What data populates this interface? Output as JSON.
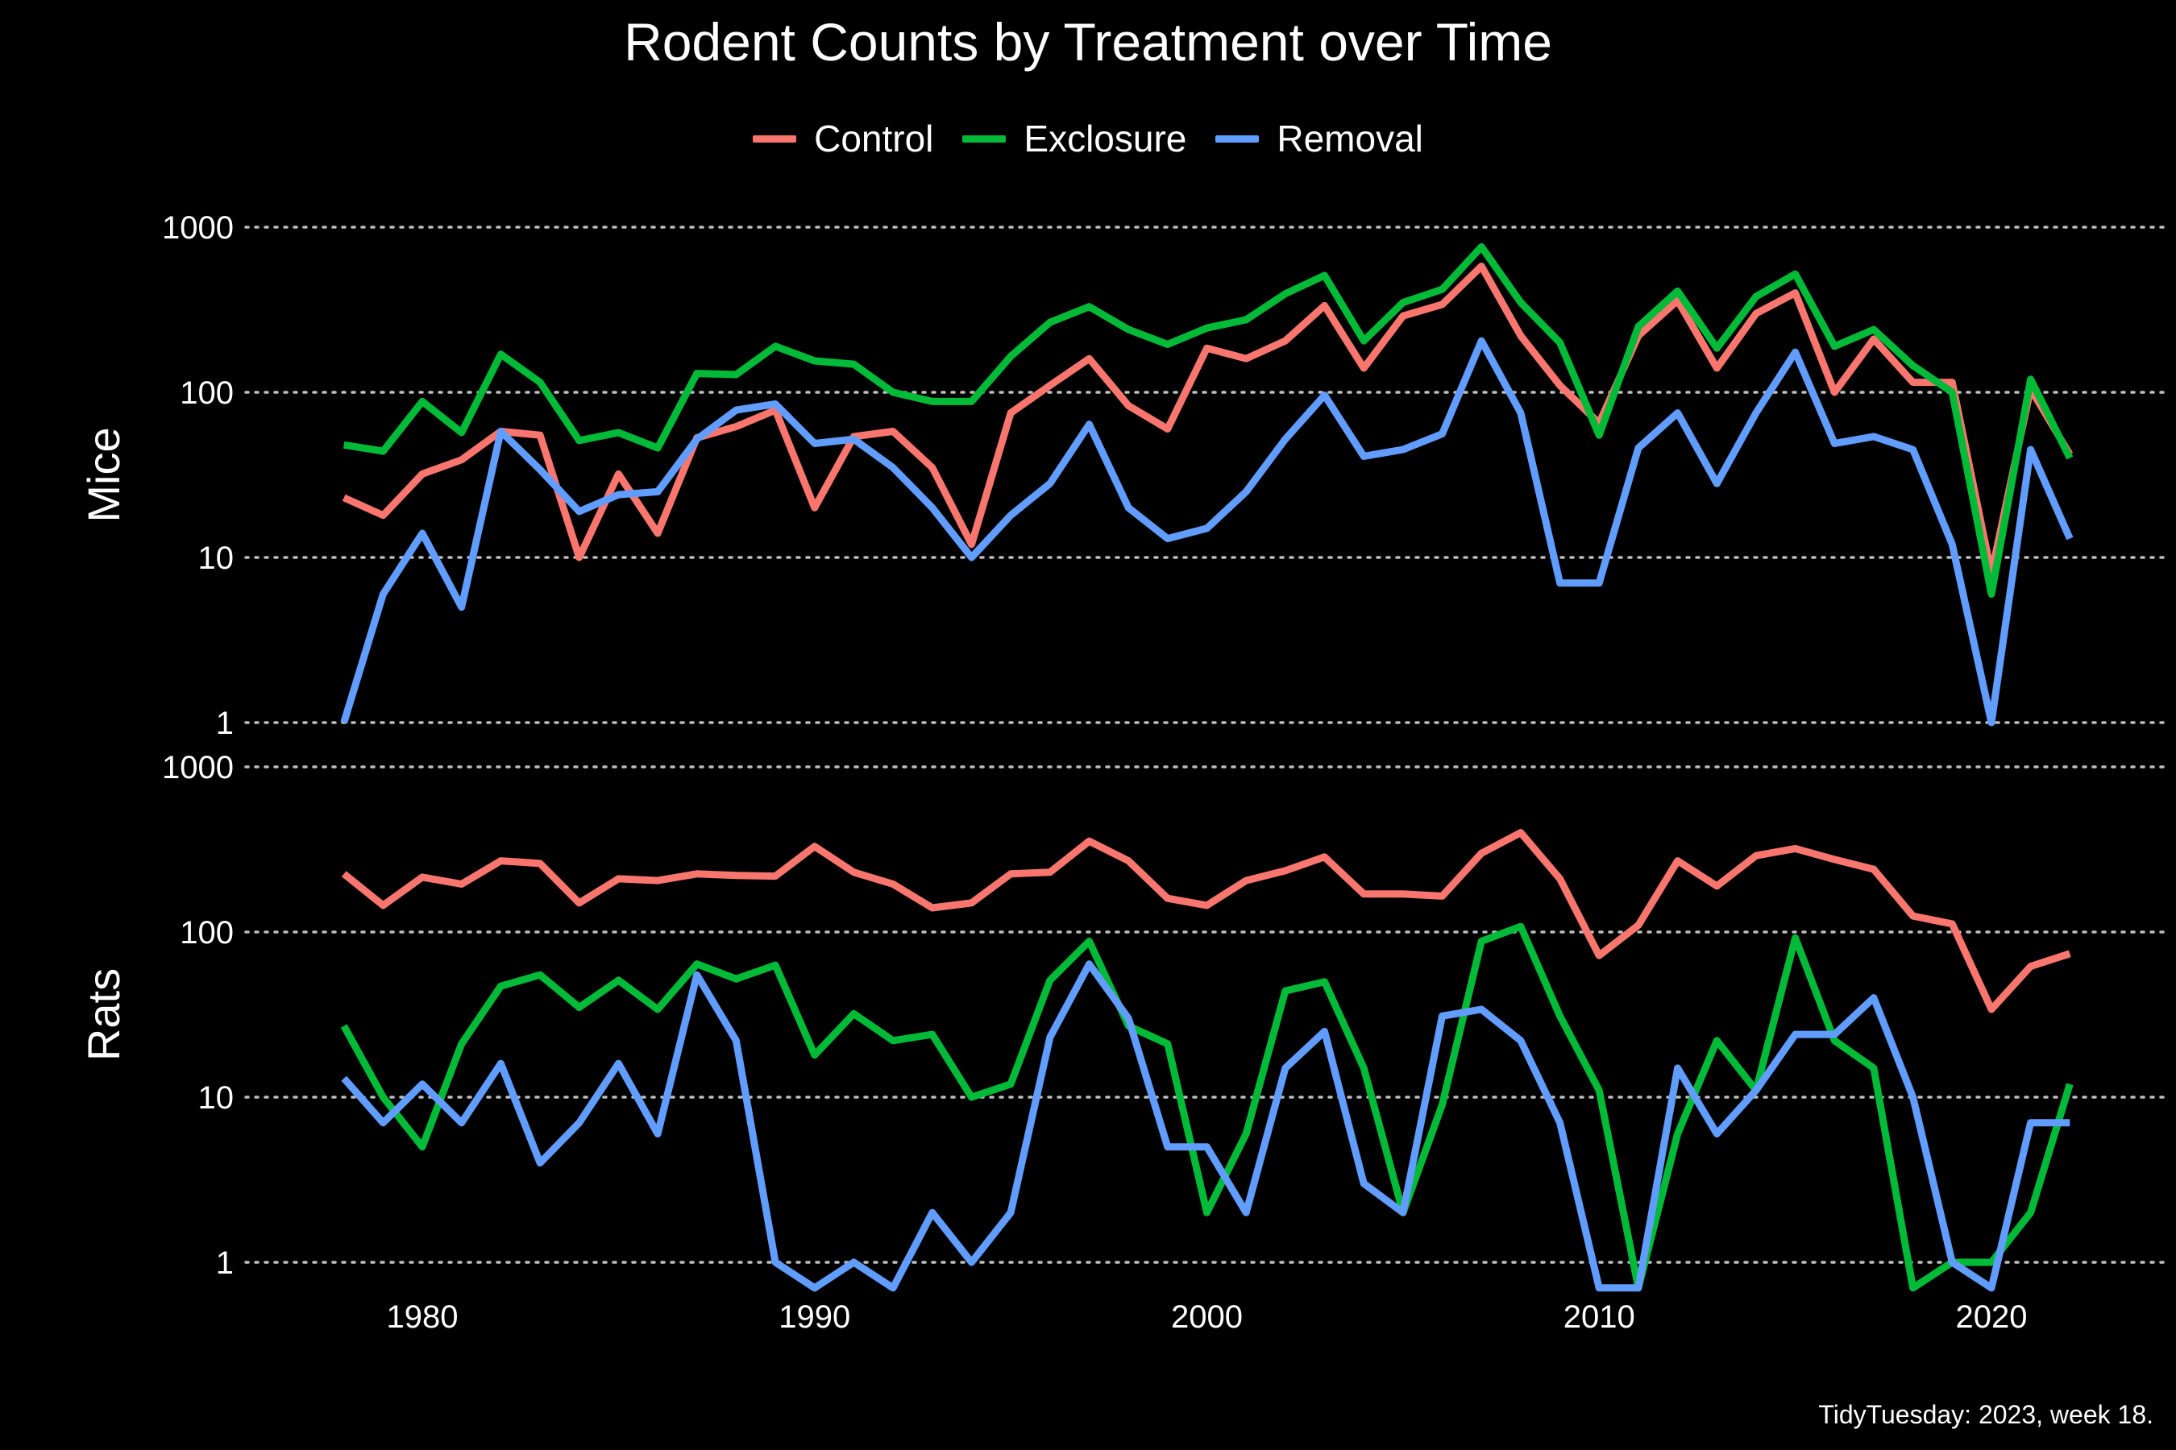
{
  "chart_data": {
    "type": "line",
    "title": "Rodent Counts by Treatment over Time",
    "caption": "TidyTuesday: 2023, week 18.",
    "xlabel": "",
    "ylabel": "",
    "y_scale": "log10",
    "grid": "horizontal dotted",
    "legend_position": "top",
    "x_ticks": [
      1980,
      1990,
      2000,
      2010,
      2020
    ],
    "x_range": [
      1975.5,
      2024.5
    ],
    "y_ticks": [
      1,
      10,
      100,
      1000
    ],
    "y_tick_labels": [
      "1",
      "10",
      "100",
      "1000"
    ],
    "legend": [
      {
        "name": "Control",
        "color": "#F8766D"
      },
      {
        "name": "Exclosure",
        "color": "#00BA38"
      },
      {
        "name": "Removal",
        "color": "#619CFF"
      }
    ],
    "x": [
      1978,
      1979,
      1980,
      1981,
      1982,
      1983,
      1984,
      1985,
      1986,
      1987,
      1988,
      1989,
      1990,
      1991,
      1992,
      1993,
      1994,
      1995,
      1996,
      1997,
      1998,
      1999,
      2000,
      2001,
      2002,
      2003,
      2004,
      2005,
      2006,
      2007,
      2008,
      2009,
      2010,
      2011,
      2012,
      2013,
      2014,
      2015,
      2016,
      2017,
      2018,
      2019,
      2020,
      2021,
      2022
    ],
    "panels": [
      {
        "label": "Mice",
        "ylim": [
          1,
          1000
        ],
        "series": [
          {
            "name": "Control",
            "values": [
              23,
              18,
              32,
              39,
              58,
              55,
              10,
              32,
              14,
              53,
              62,
              78,
              20,
              54,
              58,
              35,
              12,
              75,
              110,
              160,
              83,
              60,
              185,
              160,
              205,
              335,
              140,
              290,
              340,
              580,
              220,
              110,
              65,
              220,
              360,
              140,
              300,
              400,
              100,
              210,
              115,
              115,
              8,
              105,
              42
            ]
          },
          {
            "name": "Exclosure",
            "values": [
              48,
              44,
              88,
              57,
              170,
              115,
              51,
              57,
              46,
              130,
              128,
              190,
              155,
              148,
              100,
              88,
              88,
              165,
              265,
              330,
              240,
              195,
              245,
              275,
              395,
              510,
              205,
              350,
              420,
              760,
              350,
              200,
              55,
              250,
              410,
              185,
              380,
              520,
              190,
              240,
              145,
              100,
              6,
              120,
              40
            ]
          },
          {
            "name": "Removal",
            "values": [
              1,
              6,
              14,
              5,
              58,
              34,
              19,
              24,
              25,
              52,
              78,
              85,
              49,
              52,
              35,
              20,
              10,
              18,
              28,
              64,
              20,
              13,
              15,
              25,
              52,
              96,
              41,
              45,
              56,
              205,
              75,
              7,
              7,
              46,
              75,
              28,
              75,
              175,
              49,
              54,
              45,
              12,
              1,
              45,
              13
            ]
          }
        ]
      },
      {
        "label": "Rats",
        "ylim": [
          0.75,
          1000
        ],
        "series": [
          {
            "name": "Control",
            "values": [
              225,
              145,
              215,
              195,
              270,
              260,
              150,
              210,
              205,
              225,
              220,
              218,
              330,
              230,
              195,
              140,
              150,
              225,
              230,
              355,
              270,
              160,
              145,
              205,
              235,
              285,
              170,
              170,
              165,
              300,
              400,
              210,
              72,
              110,
              270,
              190,
              290,
              320,
              275,
              240,
              125,
              112,
              34,
              62,
              74
            ]
          },
          {
            "name": "Exclosure",
            "values": [
              27,
              10,
              5,
              21,
              47,
              55,
              35,
              51,
              34,
              64,
              52,
              63,
              18,
              32,
              22,
              24,
              10,
              12,
              51,
              88,
              27,
              21,
              2,
              6,
              44,
              50,
              15,
              2,
              9,
              88,
              108,
              31,
              11,
              0.7,
              6,
              22,
              11,
              92,
              22,
              15,
              0.7,
              1,
              1,
              2,
              12
            ]
          },
          {
            "name": "Removal",
            "values": [
              13,
              7,
              12,
              7,
              16,
              4,
              7,
              16,
              6,
              55,
              22,
              1,
              0.7,
              1,
              0.7,
              2,
              1,
              2,
              23,
              64,
              30,
              5,
              5,
              2,
              15,
              25,
              3,
              2,
              31,
              34,
              22,
              7,
              0.7,
              0.7,
              15,
              6,
              11,
              24,
              24,
              40,
              10,
              1,
              0.7,
              7,
              7
            ]
          }
        ]
      }
    ]
  }
}
